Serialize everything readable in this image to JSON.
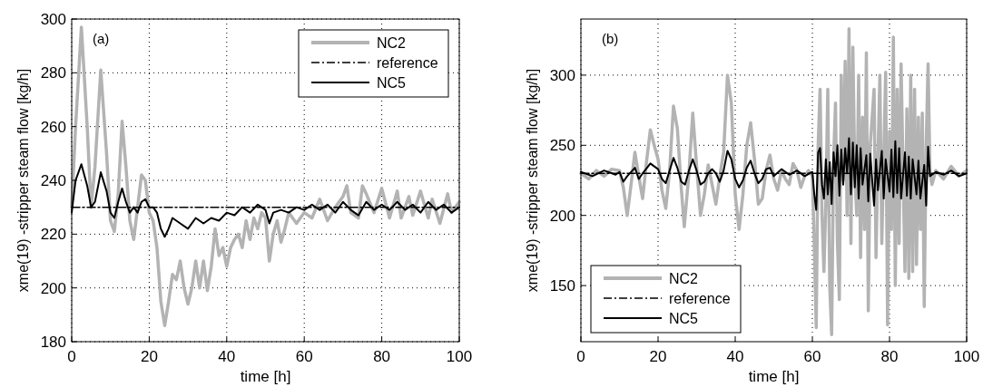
{
  "chart_data": [
    {
      "type": "line",
      "xlabel": "time [h]",
      "ylabel": "xme(19) -stripper steam flow [kg/h]",
      "annotations": [
        "(a)"
      ],
      "xlim": [
        0,
        100
      ],
      "xticks": [
        0,
        20,
        40,
        60,
        80,
        100
      ],
      "ylim": [
        180,
        300
      ],
      "yticks": [
        180,
        200,
        220,
        240,
        260,
        280,
        300
      ],
      "grid": true,
      "legend": "top right",
      "series": [
        {
          "name": "NC2",
          "color": "#b3b3b3",
          "line_style": "solid",
          "x": [
            0,
            1,
            2.5,
            4,
            5,
            6,
            7.5,
            9,
            10,
            11,
            12,
            13,
            14,
            15,
            16,
            17,
            18,
            19,
            20,
            21,
            22,
            23,
            24,
            25,
            26,
            27,
            28,
            29,
            30,
            31,
            32,
            33,
            34,
            35,
            36,
            37,
            38,
            39,
            40,
            41,
            42,
            43,
            44,
            45,
            46,
            47,
            48,
            49,
            50,
            51,
            52,
            53,
            54,
            55,
            56,
            58,
            60,
            62,
            64,
            66,
            68,
            70,
            71,
            72,
            74,
            75,
            76,
            78,
            80,
            82,
            84,
            85,
            87,
            88,
            90,
            92,
            93,
            95,
            97,
            98,
            100
          ],
          "values": [
            230,
            260,
            297,
            260,
            230,
            245,
            281,
            250,
            225,
            221,
            235,
            262,
            245,
            225,
            218,
            230,
            242,
            240,
            228,
            225,
            215,
            195,
            186,
            195,
            205,
            203,
            210,
            200,
            194,
            200,
            210,
            200,
            210,
            199,
            208,
            222,
            212,
            215,
            208,
            215,
            218,
            220,
            215,
            225,
            218,
            226,
            222,
            228,
            226,
            210,
            220,
            225,
            217,
            222,
            228,
            224,
            228,
            226,
            233,
            225,
            230,
            234,
            238,
            228,
            226,
            238,
            235,
            228,
            237,
            226,
            236,
            226,
            234,
            227,
            236,
            226,
            233,
            224,
            235,
            228,
            232
          ]
        },
        {
          "name": "reference",
          "color": "#000000",
          "line_style": "dashed",
          "x": [
            0,
            100
          ],
          "values": [
            230,
            230
          ]
        },
        {
          "name": "NC5",
          "color": "#000000",
          "line_style": "solid",
          "x": [
            0,
            1,
            2.5,
            4,
            5,
            6,
            7.5,
            9,
            10,
            11,
            12,
            13,
            14,
            15,
            16,
            17,
            18,
            19,
            20,
            21,
            22,
            23,
            24,
            25,
            26,
            28,
            30,
            32,
            34,
            36,
            38,
            40,
            42,
            44,
            46,
            48,
            50,
            51,
            52,
            54,
            56,
            58,
            60,
            62,
            64,
            66,
            68,
            70,
            72,
            74,
            76,
            78,
            80,
            82,
            84,
            86,
            88,
            90,
            92,
            94,
            96,
            98,
            100
          ],
          "values": [
            228,
            240,
            246,
            238,
            230,
            232,
            243,
            236,
            228,
            226,
            232,
            237,
            232,
            228,
            230,
            228,
            232,
            233,
            230,
            230,
            228,
            222,
            219,
            222,
            226,
            224,
            222,
            226,
            224,
            226,
            225,
            228,
            227,
            230,
            228,
            231,
            229,
            224,
            228,
            229,
            228,
            230,
            229,
            231,
            229,
            231,
            228,
            232,
            229,
            227,
            232,
            229,
            231,
            229,
            232,
            229,
            231,
            228,
            232,
            229,
            231,
            228,
            230
          ]
        }
      ]
    },
    {
      "type": "line",
      "xlabel": "time [h]",
      "ylabel": "xme(19) -stripper steam flow [kg/h]",
      "annotations": [
        "(b)"
      ],
      "xlim": [
        0,
        100
      ],
      "xticks": [
        0,
        20,
        40,
        60,
        80,
        100
      ],
      "ylim": [
        110,
        340
      ],
      "yticks": [
        150,
        200,
        250,
        300
      ],
      "grid": true,
      "legend": "bottom left",
      "series": [
        {
          "name": "NC2",
          "color": "#b3b3b3",
          "line_style": "solid",
          "x": [
            0,
            2,
            4,
            6,
            8,
            10,
            11,
            12,
            13,
            14,
            15,
            16,
            17,
            18,
            19,
            20,
            21,
            22,
            23,
            24,
            25,
            26,
            26.8,
            28,
            29,
            30,
            31,
            32,
            33,
            34,
            35,
            36,
            37,
            38,
            39,
            40,
            41,
            42,
            43,
            44,
            45,
            46,
            47,
            48,
            49,
            50,
            51,
            52,
            53,
            54,
            55,
            56,
            57,
            58,
            59,
            60,
            60.5,
            61,
            61.5,
            62,
            62.5,
            63,
            63.5,
            64,
            64.5,
            65,
            65.5,
            66,
            66.5,
            67,
            67.5,
            68,
            68.5,
            69,
            69.5,
            70,
            70.5,
            71,
            71.5,
            72,
            72.5,
            73,
            73.5,
            74,
            74.5,
            75,
            76,
            76.5,
            77,
            77.5,
            78,
            79,
            79.5,
            80,
            80.5,
            81,
            81.5,
            82,
            82.5,
            83,
            84,
            84.5,
            85,
            85.5,
            86,
            86.5,
            87,
            87.5,
            88,
            88.5,
            89,
            89.5,
            90,
            90.5,
            91,
            92,
            94,
            96,
            98,
            100
          ],
          "values": [
            230,
            226,
            232,
            228,
            233,
            232,
            220,
            200,
            222,
            245,
            228,
            212,
            238,
            261,
            250,
            240,
            218,
            205,
            232,
            278,
            262,
            220,
            192,
            230,
            273,
            235,
            200,
            215,
            236,
            222,
            208,
            228,
            245,
            300,
            280,
            215,
            190,
            215,
            250,
            266,
            240,
            208,
            212,
            232,
            243,
            226,
            218,
            232,
            226,
            222,
            237,
            232,
            220,
            228,
            232,
            228,
            180,
            120,
            250,
            290,
            200,
            160,
            210,
            290,
            150,
            115,
            240,
            280,
            180,
            140,
            300,
            225,
            310,
            200,
            333,
            180,
            320,
            230,
            200,
            300,
            170,
            270,
            190,
            316,
            132,
            250,
            290,
            170,
            240,
            300,
            180,
            302,
            122,
            260,
            190,
            327,
            150,
            290,
            180,
            308,
            160,
            276,
            155,
            300,
            160,
            290,
            165,
            270,
            190,
            273,
            135,
            250,
            308,
            230,
            222,
            232,
            226,
            235,
            228,
            232
          ]
        },
        {
          "name": "reference",
          "color": "#000000",
          "line_style": "dashed",
          "x": [
            0,
            100
          ],
          "values": [
            230,
            230
          ]
        },
        {
          "name": "NC5",
          "color": "#000000",
          "line_style": "solid",
          "x": [
            0,
            3,
            6,
            9,
            10,
            11,
            12,
            14,
            15,
            16,
            18,
            20,
            21,
            22,
            23,
            24,
            25,
            26,
            27,
            28,
            29,
            30,
            31,
            32,
            33,
            34,
            35,
            36,
            37,
            38,
            39,
            40,
            41,
            42,
            43,
            44,
            45,
            46,
            47,
            48,
            49,
            50,
            52,
            54,
            56,
            58,
            60,
            60.5,
            61,
            61.5,
            62,
            62.5,
            63,
            63.5,
            64,
            64.5,
            65,
            65.5,
            66,
            66.5,
            67,
            67.5,
            68,
            68.5,
            69,
            69.5,
            70,
            70.5,
            71,
            71.5,
            72,
            72.5,
            73,
            74,
            74.5,
            75,
            76,
            76.5,
            77,
            78,
            78.5,
            79,
            80,
            80.5,
            81,
            81.5,
            82,
            82.5,
            83,
            84,
            84.5,
            85,
            85.5,
            86,
            87,
            87.5,
            88,
            89,
            89.5,
            90,
            90.5,
            92,
            94,
            96,
            98,
            100
          ],
          "values": [
            231,
            228,
            232,
            229,
            231,
            224,
            228,
            234,
            226,
            230,
            237,
            233,
            226,
            223,
            232,
            241,
            234,
            224,
            222,
            232,
            240,
            232,
            222,
            224,
            230,
            233,
            230,
            224,
            232,
            246,
            240,
            226,
            220,
            225,
            234,
            239,
            230,
            223,
            226,
            233,
            234,
            228,
            233,
            229,
            232,
            228,
            231,
            215,
            204,
            245,
            248,
            222,
            212,
            240,
            215,
            238,
            208,
            245,
            228,
            250,
            214,
            247,
            222,
            248,
            230,
            255,
            215,
            252,
            220,
            250,
            212,
            248,
            222,
            243,
            210,
            244,
            207,
            240,
            218,
            246,
            212,
            240,
            217,
            247,
            213,
            253,
            216,
            248,
            212,
            245,
            214,
            242,
            212,
            240,
            215,
            239,
            212,
            236,
            207,
            249,
            228,
            231,
            229,
            232,
            228,
            230
          ]
        }
      ]
    }
  ]
}
